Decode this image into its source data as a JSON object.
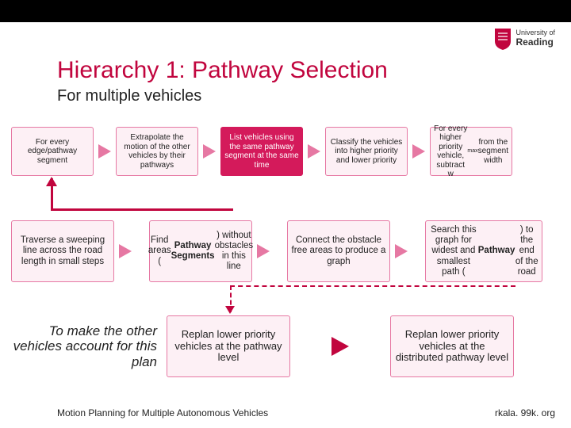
{
  "logo": {
    "uni": "University of",
    "name": "Reading"
  },
  "title": "Hierarchy 1: Pathway Selection",
  "subtitle": "For multiple vehicles",
  "colors": {
    "brand": "#c1053e",
    "box_border_pink": "#e678a3",
    "box_fill_pink": "#fdf0f5",
    "box_fill_brand": "#d41a5b",
    "arrow_pink": "#e678a3",
    "fb_line": "#c1053e"
  },
  "fonts": {
    "title_size": 30,
    "subtitle_size": 20,
    "box_sm_size": 10,
    "box_md_size": 11.5,
    "note_size": 17,
    "footer_size": 12
  },
  "row1": [
    {
      "text": "For every edge/pathway segment",
      "variant": "outline"
    },
    {
      "text": "Extrapolate the motion of the other vehicles by their pathways",
      "variant": "outline"
    },
    {
      "text": "List vehicles using the same pathway segment at the same time",
      "variant": "fill"
    },
    {
      "text": "Classify the vehicles into higher priority and lower priority",
      "variant": "outline"
    },
    {
      "html": "For every higher priority vehicle, subtract w<sub>max</sub> from the segment width",
      "variant": "outline"
    }
  ],
  "row2": [
    {
      "text": "Traverse a sweeping line across the road length in small steps",
      "variant": "outline"
    },
    {
      "html": "Find areas (<b>Pathway Segments</b>) without obstacles in this line",
      "variant": "outline"
    },
    {
      "text": "Connect the obstacle free areas to produce a graph",
      "variant": "outline"
    },
    {
      "html": "Search this graph for widest and smallest path (<b>Pathway</b>) to the end of the road",
      "variant": "outline"
    }
  ],
  "row3": {
    "note": "To make the other vehicles account for this plan",
    "boxes": [
      {
        "text": "Replan lower priority vehicles at the pathway level",
        "variant": "outline"
      },
      {
        "text": "Replan lower priority vehicles at the distributed pathway level",
        "variant": "outline"
      }
    ]
  },
  "footer": {
    "left": "Motion Planning for Multiple Autonomous Vehicles",
    "right": "rkala. 99k. org"
  }
}
